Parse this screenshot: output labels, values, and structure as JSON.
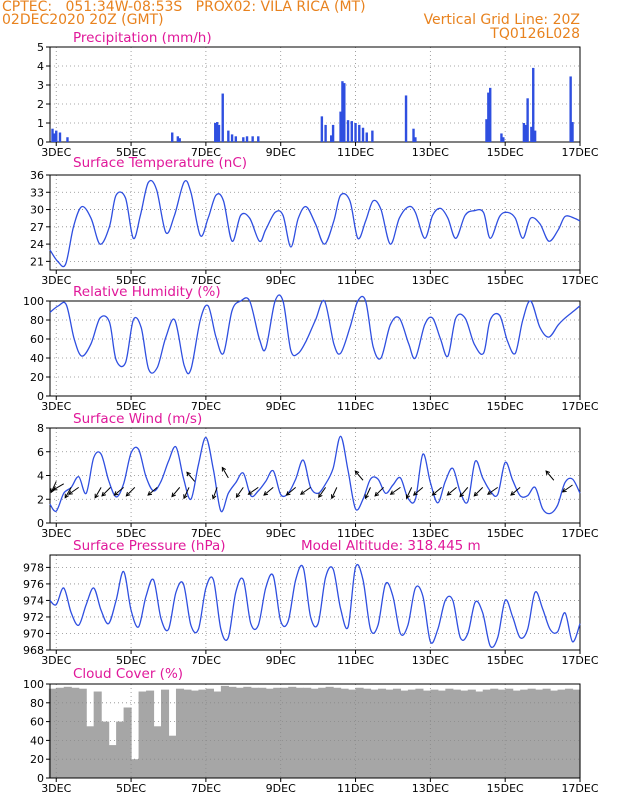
{
  "header": {
    "line1_left": "CPTEC:   051:34W-08:53S   PROX02: VILA RICA (MT)",
    "line2_left": "02DEC2020 20Z (GMT)",
    "line2_right": "Vertical Grid Line: 20Z",
    "line3_right": "TQ0126L028"
  },
  "colors": {
    "header": "#e8821e",
    "title": "#e0189a",
    "series": "#2f4fe0",
    "cloud": "#a6a6a6"
  },
  "chart_data": [
    {
      "type": "bar",
      "title": "Precipitation (mm/h)",
      "x_ticks": [
        "3DEC",
        "5DEC",
        "7DEC",
        "9DEC",
        "11DEC",
        "13DEC",
        "15DEC",
        "17DEC"
      ],
      "x_range_days": [
        2.833,
        17.0
      ],
      "y_ticks": [
        0,
        1,
        2,
        3,
        4,
        5
      ],
      "ylim": [
        0,
        5
      ],
      "grid": true,
      "x": [
        2.9,
        2.95,
        3.0,
        3.1,
        3.3,
        6.1,
        6.25,
        6.3,
        7.25,
        7.3,
        7.35,
        7.45,
        7.6,
        7.7,
        7.8,
        8.0,
        8.1,
        8.25,
        8.4,
        10.1,
        10.2,
        10.35,
        10.4,
        10.6,
        10.65,
        10.7,
        10.8,
        10.9,
        11.0,
        11.1,
        11.2,
        11.3,
        11.45,
        12.35,
        12.55,
        12.6,
        14.5,
        14.55,
        14.6,
        14.9,
        14.95,
        15.5,
        15.55,
        15.6,
        15.7,
        15.75,
        15.8,
        16.75,
        16.8
      ],
      "values": [
        0.7,
        0.45,
        0.6,
        0.5,
        0.25,
        0.5,
        0.3,
        0.2,
        1.0,
        1.05,
        0.9,
        2.55,
        0.6,
        0.4,
        0.3,
        0.25,
        0.3,
        0.3,
        0.3,
        1.35,
        0.9,
        0.35,
        0.9,
        1.6,
        3.2,
        3.1,
        1.15,
        1.1,
        1.0,
        0.9,
        0.75,
        0.5,
        0.6,
        2.45,
        0.7,
        0.25,
        1.2,
        2.6,
        2.85,
        0.45,
        0.25,
        1.0,
        0.9,
        2.3,
        0.8,
        3.9,
        0.6,
        3.45,
        1.05
      ]
    },
    {
      "type": "line",
      "title": "Surface Temperature (nC)",
      "x_ticks": [
        "3DEC",
        "5DEC",
        "7DEC",
        "9DEC",
        "11DEC",
        "13DEC",
        "15DEC",
        "17DEC"
      ],
      "y_ticks": [
        21,
        24,
        27,
        30,
        33,
        36
      ],
      "ylim": [
        19.5,
        36
      ],
      "grid": true,
      "x": [
        2.83,
        3.04,
        3.25,
        3.46,
        3.68,
        3.93,
        4.17,
        4.42,
        4.6,
        4.85,
        5.06,
        5.25,
        5.46,
        5.68,
        5.93,
        6.16,
        6.42,
        6.6,
        6.85,
        7.06,
        7.27,
        7.47,
        7.7,
        7.93,
        8.17,
        8.43,
        8.6,
        8.85,
        9.06,
        9.27,
        9.47,
        9.68,
        9.93,
        10.17,
        10.42,
        10.6,
        10.85,
        11.06,
        11.27,
        11.47,
        11.68,
        11.93,
        12.17,
        12.42,
        12.6,
        12.85,
        13.06,
        13.27,
        13.47,
        13.68,
        13.93,
        14.17,
        14.42,
        14.6,
        14.85,
        15.06,
        15.27,
        15.47,
        15.68,
        15.93,
        16.17,
        16.42,
        16.6,
        16.85,
        17.0
      ],
      "values": [
        23,
        21,
        20.5,
        27,
        30.5,
        28.5,
        24,
        27,
        32.5,
        32,
        25,
        29,
        34.7,
        33.5,
        26,
        29,
        34.8,
        33,
        25.5,
        28.5,
        32.5,
        31.5,
        24.5,
        29,
        28.5,
        24.5,
        26.5,
        29.5,
        29,
        23.5,
        28.5,
        30.5,
        27.5,
        24,
        28,
        32.5,
        31.5,
        25,
        28,
        31.5,
        30,
        24,
        28.5,
        30.5,
        29.5,
        25,
        29,
        30.2,
        28.5,
        25,
        29,
        29.8,
        29.5,
        25,
        28.8,
        29.5,
        28.5,
        25,
        28.5,
        27.5,
        24.5,
        26.5,
        28.8,
        28.5,
        28
      ]
    },
    {
      "type": "line",
      "title": "Relative Humidity (%)",
      "x_ticks": [
        "3DEC",
        "5DEC",
        "7DEC",
        "9DEC",
        "11DEC",
        "13DEC",
        "15DEC",
        "17DEC"
      ],
      "y_ticks": [
        0,
        20,
        40,
        60,
        80,
        100
      ],
      "ylim": [
        0,
        100
      ],
      "grid": true,
      "x": [
        2.83,
        3.06,
        3.27,
        3.48,
        3.68,
        3.93,
        4.17,
        4.42,
        4.6,
        4.85,
        5.06,
        5.27,
        5.47,
        5.7,
        5.93,
        6.17,
        6.42,
        6.6,
        6.85,
        7.06,
        7.27,
        7.47,
        7.7,
        7.93,
        8.17,
        8.43,
        8.6,
        8.85,
        9.06,
        9.27,
        9.47,
        9.68,
        9.93,
        10.17,
        10.42,
        10.6,
        10.85,
        11.06,
        11.27,
        11.47,
        11.68,
        11.93,
        12.17,
        12.42,
        12.6,
        12.85,
        13.06,
        13.27,
        13.47,
        13.68,
        13.93,
        14.17,
        14.42,
        14.6,
        14.85,
        15.06,
        15.27,
        15.47,
        15.68,
        15.93,
        16.17,
        16.42,
        16.6,
        16.85,
        17.0
      ],
      "values": [
        88,
        95,
        96,
        60,
        42,
        55,
        82,
        78,
        38,
        35,
        80,
        72,
        28,
        30,
        62,
        80,
        32,
        28,
        80,
        95,
        62,
        45,
        90,
        100,
        100,
        60,
        50,
        100,
        100,
        48,
        45,
        58,
        80,
        100,
        55,
        45,
        72,
        100,
        100,
        52,
        40,
        75,
        82,
        55,
        40,
        75,
        82,
        60,
        42,
        82,
        82,
        55,
        45,
        80,
        85,
        58,
        45,
        80,
        100,
        72,
        62,
        75,
        82,
        90,
        95
      ]
    },
    {
      "type": "line",
      "title": "Surface Wind (m/s)",
      "x_ticks": [
        "3DEC",
        "5DEC",
        "7DEC",
        "9DEC",
        "11DEC",
        "13DEC",
        "15DEC",
        "17DEC"
      ],
      "y_ticks": [
        0,
        2,
        4,
        6,
        8
      ],
      "ylim": [
        0,
        8
      ],
      "grid": true,
      "x": [
        2.83,
        3.0,
        3.2,
        3.4,
        3.6,
        3.8,
        4.0,
        4.2,
        4.4,
        4.6,
        4.8,
        5.0,
        5.2,
        5.4,
        5.6,
        5.8,
        6.0,
        6.2,
        6.4,
        6.6,
        6.8,
        7.0,
        7.2,
        7.4,
        7.6,
        7.8,
        8.0,
        8.2,
        8.4,
        8.6,
        8.8,
        9.0,
        9.2,
        9.4,
        9.6,
        9.8,
        10.0,
        10.2,
        10.4,
        10.6,
        10.8,
        11.0,
        11.2,
        11.4,
        11.6,
        11.8,
        12.0,
        12.2,
        12.4,
        12.6,
        12.8,
        13.0,
        13.2,
        13.4,
        13.6,
        13.8,
        14.0,
        14.2,
        14.4,
        14.6,
        14.8,
        15.0,
        15.2,
        15.4,
        15.6,
        15.8,
        16.0,
        16.2,
        16.4,
        16.6,
        16.8,
        17.0
      ],
      "values": [
        1.6,
        1.0,
        2.5,
        3.0,
        3.9,
        2.5,
        5.5,
        5.8,
        3.6,
        2.2,
        3.3,
        5.9,
        6.2,
        3.9,
        2.7,
        3.5,
        5.2,
        6.4,
        3.8,
        2.0,
        4.9,
        7.2,
        4.5,
        1.0,
        2.5,
        3.4,
        4.2,
        2.3,
        2.7,
        3.5,
        4.4,
        2.4,
        2.5,
        3.7,
        5.3,
        3.0,
        2.5,
        3.3,
        4.6,
        7.3,
        4.4,
        1.2,
        2.0,
        3.7,
        3.7,
        2.5,
        3.2,
        3.8,
        2.1,
        2.0,
        5.8,
        3.4,
        1.7,
        3.5,
        4.6,
        2.6,
        1.8,
        5.2,
        3.8,
        2.7,
        2.4,
        5.1,
        3.6,
        2.3,
        2.3,
        3.0,
        1.2,
        0.8,
        1.5,
        3.4,
        3.7,
        2.5
      ],
      "arrows": [
        {
          "x": 3.0,
          "y": 3.5,
          "dir": 205
        },
        {
          "x": 3.2,
          "y": 3.3,
          "dir": 240
        },
        {
          "x": 3.4,
          "y": 3.0,
          "dir": 210
        },
        {
          "x": 3.6,
          "y": 3.0,
          "dir": 235
        },
        {
          "x": 4.2,
          "y": 3.0,
          "dir": 210
        },
        {
          "x": 4.45,
          "y": 3.0,
          "dir": 225
        },
        {
          "x": 4.8,
          "y": 3.0,
          "dir": 230
        },
        {
          "x": 5.1,
          "y": 3.0,
          "dir": 225
        },
        {
          "x": 5.7,
          "y": 3.0,
          "dir": 230
        },
        {
          "x": 6.3,
          "y": 3.0,
          "dir": 220
        },
        {
          "x": 6.55,
          "y": 3.0,
          "dir": 205
        },
        {
          "x": 6.7,
          "y": 3.5,
          "dir": 320
        },
        {
          "x": 7.3,
          "y": 3.0,
          "dir": 200
        },
        {
          "x": 7.6,
          "y": 3.8,
          "dir": 330
        },
        {
          "x": 8.0,
          "y": 3.0,
          "dir": 215
        },
        {
          "x": 8.4,
          "y": 3.0,
          "dir": 235
        },
        {
          "x": 8.8,
          "y": 3.0,
          "dir": 230
        },
        {
          "x": 9.4,
          "y": 3.0,
          "dir": 230
        },
        {
          "x": 9.8,
          "y": 3.0,
          "dir": 235
        },
        {
          "x": 10.2,
          "y": 3.0,
          "dir": 215
        },
        {
          "x": 10.5,
          "y": 3.0,
          "dir": 205
        },
        {
          "x": 11.2,
          "y": 3.6,
          "dir": 320
        },
        {
          "x": 11.4,
          "y": 3.0,
          "dir": 205
        },
        {
          "x": 11.75,
          "y": 3.0,
          "dir": 225
        },
        {
          "x": 12.2,
          "y": 3.0,
          "dir": 235
        },
        {
          "x": 12.5,
          "y": 3.0,
          "dir": 205
        },
        {
          "x": 12.8,
          "y": 3.0,
          "dir": 230
        },
        {
          "x": 13.3,
          "y": 3.0,
          "dir": 230
        },
        {
          "x": 13.7,
          "y": 3.0,
          "dir": 230
        },
        {
          "x": 14.0,
          "y": 3.0,
          "dir": 220
        },
        {
          "x": 14.4,
          "y": 3.0,
          "dir": 225
        },
        {
          "x": 14.8,
          "y": 3.0,
          "dir": 235
        },
        {
          "x": 15.4,
          "y": 3.0,
          "dir": 230
        },
        {
          "x": 16.3,
          "y": 3.6,
          "dir": 320
        },
        {
          "x": 16.8,
          "y": 3.2,
          "dir": 235
        }
      ]
    },
    {
      "type": "line",
      "title": "Surface Pressure (hPa)",
      "annotation": "Model Altitude: 318.445 m",
      "x_ticks": [
        "3DEC",
        "5DEC",
        "7DEC",
        "9DEC",
        "11DEC",
        "13DEC",
        "15DEC",
        "17DEC"
      ],
      "y_ticks": [
        968,
        970,
        972,
        974,
        976,
        978
      ],
      "ylim": [
        968,
        979.5
      ],
      "grid": true,
      "x": [
        2.83,
        3.0,
        3.2,
        3.4,
        3.6,
        3.8,
        4.0,
        4.2,
        4.4,
        4.6,
        4.8,
        5.0,
        5.2,
        5.4,
        5.6,
        5.8,
        6.0,
        6.2,
        6.4,
        6.6,
        6.8,
        7.0,
        7.2,
        7.4,
        7.6,
        7.8,
        8.0,
        8.2,
        8.4,
        8.6,
        8.8,
        9.0,
        9.2,
        9.4,
        9.6,
        9.8,
        10.0,
        10.2,
        10.4,
        10.6,
        10.8,
        11.0,
        11.2,
        11.4,
        11.6,
        11.8,
        12.0,
        12.2,
        12.4,
        12.6,
        12.8,
        13.0,
        13.2,
        13.4,
        13.6,
        13.8,
        14.0,
        14.2,
        14.4,
        14.6,
        14.8,
        15.0,
        15.2,
        15.4,
        15.6,
        15.8,
        16.0,
        16.2,
        16.4,
        16.6,
        16.8,
        17.0
      ],
      "values": [
        974,
        973.5,
        975.5,
        972.5,
        971,
        973.5,
        975.5,
        972.8,
        971.2,
        974,
        977.5,
        972.8,
        970.8,
        974.5,
        976.5,
        971.8,
        970.5,
        975,
        976,
        971,
        970.5,
        975.5,
        976.5,
        970.5,
        969.5,
        975,
        976.5,
        971.2,
        971,
        975.5,
        977,
        971.5,
        971.5,
        976.5,
        978,
        972,
        971.2,
        976.8,
        977.8,
        973,
        970.8,
        978,
        976.5,
        970.5,
        971,
        976,
        974.5,
        970,
        971,
        975.5,
        974.5,
        969,
        970.5,
        974,
        974,
        969.5,
        970,
        973.8,
        972.5,
        968.5,
        969.5,
        974,
        972,
        969.5,
        970.5,
        975,
        973,
        970.5,
        970.2,
        972.5,
        969,
        971.2
      ]
    },
    {
      "type": "bar",
      "title": "Cloud Cover (%)",
      "x_ticks": [
        "3DEC",
        "5DEC",
        "7DEC",
        "9DEC",
        "11DEC",
        "13DEC",
        "15DEC",
        "17DEC"
      ],
      "y_ticks": [
        0,
        20,
        40,
        60,
        80,
        100
      ],
      "ylim": [
        0,
        100
      ],
      "grid": true,
      "x": [
        2.9,
        3.1,
        3.3,
        3.5,
        3.7,
        3.9,
        4.1,
        4.3,
        4.5,
        4.7,
        4.9,
        5.1,
        5.3,
        5.5,
        5.7,
        5.9,
        6.1,
        6.3,
        6.5,
        6.7,
        6.9,
        7.1,
        7.3,
        7.5,
        7.7,
        7.9,
        8.1,
        8.3,
        8.5,
        8.7,
        8.9,
        9.1,
        9.3,
        9.5,
        9.7,
        9.9,
        10.1,
        10.3,
        10.5,
        10.7,
        10.9,
        11.1,
        11.3,
        11.5,
        11.7,
        11.9,
        12.1,
        12.3,
        12.5,
        12.7,
        12.9,
        13.1,
        13.3,
        13.5,
        13.7,
        13.9,
        14.1,
        14.3,
        14.5,
        14.7,
        14.9,
        15.1,
        15.3,
        15.5,
        15.7,
        15.9,
        16.1,
        16.3,
        16.5,
        16.7,
        16.9
      ],
      "values": [
        95,
        96,
        97,
        96,
        95,
        55,
        92,
        60,
        35,
        60,
        75,
        20,
        92,
        93,
        55,
        94,
        45,
        95,
        94,
        93,
        94,
        95,
        92,
        98,
        97,
        96,
        97,
        96,
        96,
        95,
        96,
        96,
        97,
        96,
        96,
        95,
        96,
        97,
        96,
        95,
        94,
        96,
        95,
        94,
        95,
        94,
        95,
        93,
        94,
        95,
        93,
        94,
        93,
        95,
        94,
        93,
        94,
        92,
        94,
        95,
        94,
        95,
        93,
        94,
        95,
        94,
        95,
        93,
        94,
        95,
        94
      ]
    }
  ]
}
